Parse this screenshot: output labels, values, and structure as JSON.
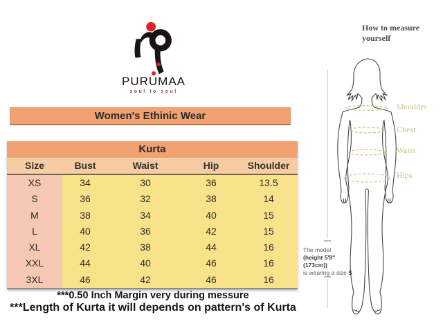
{
  "brand": {
    "name_parts": [
      "PUR",
      "U",
      "MAA"
    ],
    "full_name": "PURUMAA",
    "tagline": "soul to soul",
    "accent_red": "#e01f26"
  },
  "banner": {
    "title": "Women's Ethinic Wear"
  },
  "size_chart": {
    "title": "Kurta",
    "columns": [
      "Size",
      "Bust",
      "Waist",
      "Hip",
      "Shoulder"
    ],
    "rows": [
      [
        "XS",
        "34",
        "30",
        "36",
        "13.5"
      ],
      [
        "S",
        "36",
        "32",
        "38",
        "14"
      ],
      [
        "M",
        "38",
        "34",
        "40",
        "15"
      ],
      [
        "L",
        "40",
        "36",
        "42",
        "15"
      ],
      [
        "XL",
        "42",
        "38",
        "44",
        "16"
      ],
      [
        "XXL",
        "44",
        "40",
        "46",
        "16"
      ],
      [
        "3XL",
        "46",
        "42",
        "46",
        "16"
      ]
    ]
  },
  "notes": [
    "***0.50 Inch Margin very during messure",
    "***Length of Kurta it will depends on pattern's of Kurta"
  ],
  "measure_guide": {
    "title": "How to measure yourself",
    "labels": [
      "Shoulder",
      "Chest",
      "Waist",
      "Hips"
    ],
    "model_note": {
      "line1": "The model",
      "line2": "(height 5'8\"(173cm))",
      "line3_prefix": "is wearing a size ",
      "line3_size": "S"
    }
  },
  "colors": {
    "band_orange": "#f0a273",
    "header_peach": "#f7cba4",
    "size_col_pink": "#f5c9b3",
    "body_yellow": "#f9e38a",
    "label_olive": "#c6bd82",
    "accent_red": "#e01f26"
  }
}
